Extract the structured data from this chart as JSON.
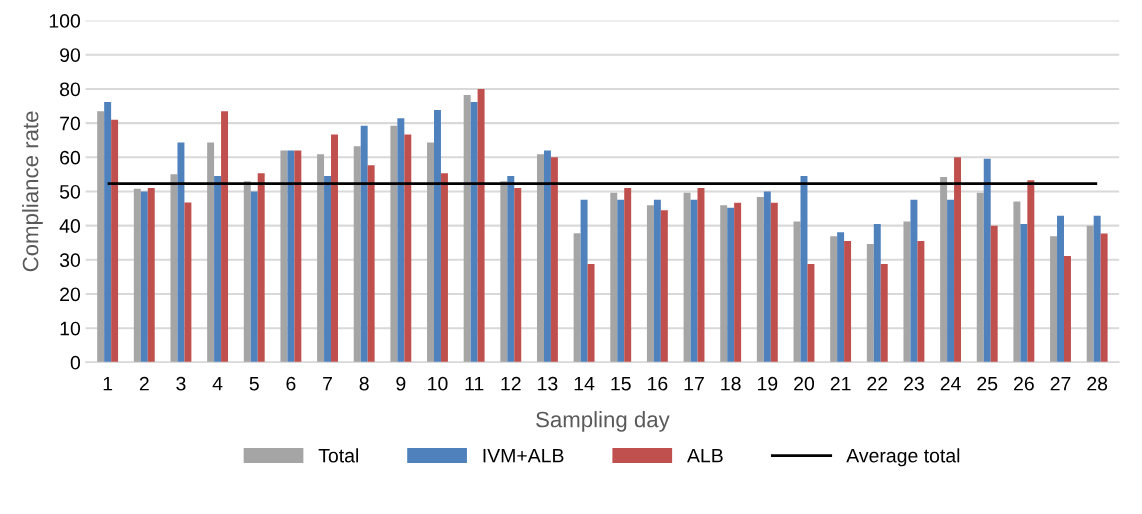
{
  "chart_data": {
    "type": "bar",
    "xlabel": "Sampling day",
    "ylabel": "Compliance rate",
    "categories": [
      "1",
      "2",
      "3",
      "4",
      "5",
      "6",
      "7",
      "8",
      "9",
      "10",
      "11",
      "12",
      "13",
      "14",
      "15",
      "16",
      "17",
      "18",
      "19",
      "20",
      "21",
      "22",
      "23",
      "24",
      "25",
      "26",
      "27",
      "28"
    ],
    "series": [
      {
        "name": "Total",
        "color": "#a5a5a5",
        "values": [
          73.5,
          50.8,
          55,
          64.3,
          53,
          62,
          60.9,
          63.2,
          69.2,
          64.3,
          78.2,
          53,
          60.9,
          37.8,
          49.6,
          46,
          49.6,
          46,
          48.4,
          41.2,
          36.9,
          34.6,
          41.2,
          54.2,
          49.6,
          47.1,
          36.9,
          40
        ]
      },
      {
        "name": "IVM+ALB",
        "color": "#4f81bd",
        "values": [
          76.2,
          50,
          64.3,
          54.5,
          50,
          62,
          54.5,
          69.2,
          71.4,
          73.8,
          76.2,
          54.5,
          62,
          47.6,
          47.6,
          47.6,
          47.6,
          45.2,
          50,
          54.5,
          38.1,
          40.5,
          47.6,
          47.6,
          59.6,
          40.5,
          42.9,
          42.9
        ]
      },
      {
        "name": "ALB",
        "color": "#c0504d",
        "values": [
          71,
          51,
          46.8,
          73.5,
          55.3,
          62,
          66.7,
          57.7,
          66.7,
          55.3,
          80,
          51,
          60,
          28.8,
          51,
          44.5,
          51,
          46.7,
          46.7,
          28.8,
          35.5,
          28.8,
          35.5,
          60,
          40,
          53.3,
          31.1,
          37.7
        ]
      }
    ],
    "ref_lines": [
      {
        "axis": "y",
        "value": 52.3,
        "label": "Average total",
        "color": "#000000",
        "line_style": "solid"
      }
    ],
    "ylim": [
      0,
      100
    ],
    "yticks": [
      0,
      10,
      20,
      30,
      40,
      50,
      60,
      70,
      80,
      90,
      100
    ],
    "grid": "y",
    "legend": "bottom"
  }
}
